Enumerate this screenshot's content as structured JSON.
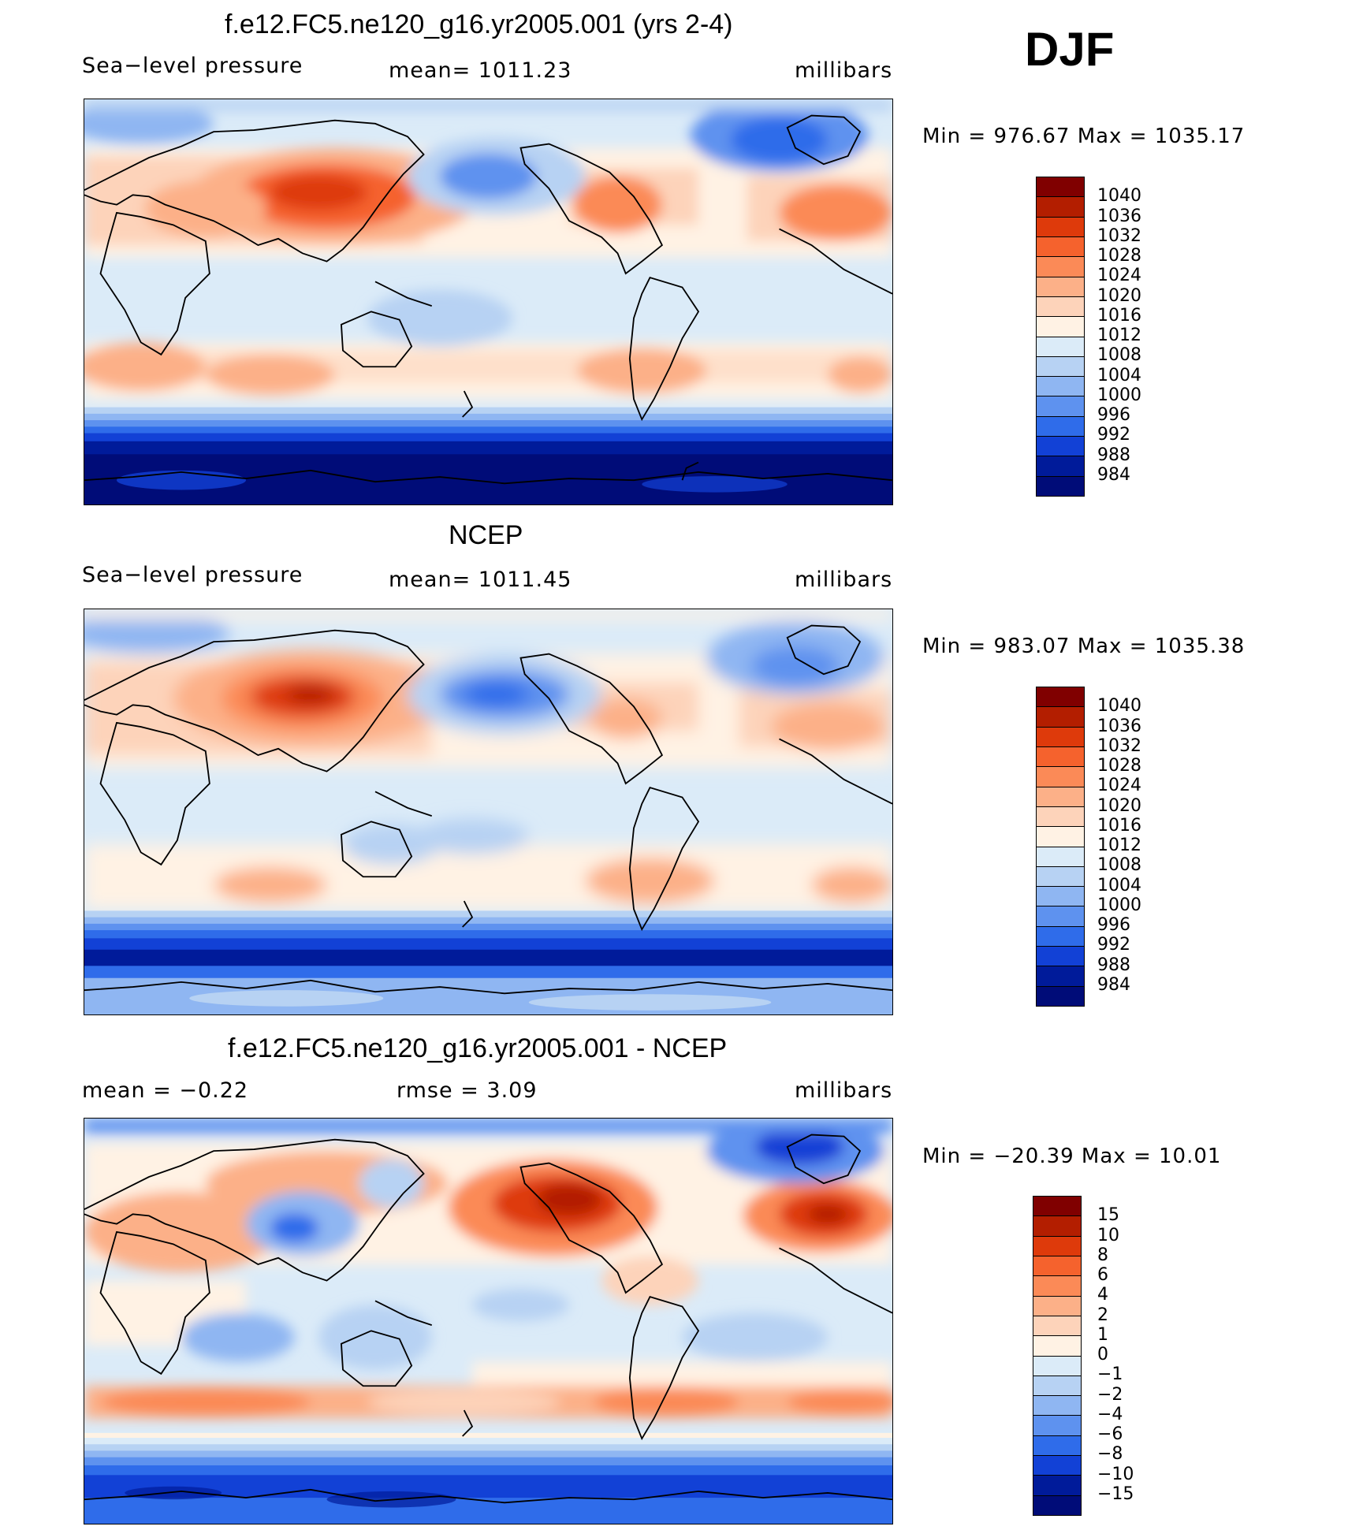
{
  "season": "DJF",
  "panels": [
    {
      "id": "model",
      "title": "f.e12.FC5.ne120_g16.yr2005.001 (yrs 2-4)",
      "left_label": "Sea−level pressure",
      "center_label": "mean=  1011.23",
      "units": "millibars",
      "minmax": "Min  =  976.67  Max  =  1035.17",
      "colorbar": {
        "levels": [
          "1040",
          "1036",
          "1032",
          "1028",
          "1024",
          "1020",
          "1016",
          "1012",
          "1008",
          "1004",
          "1000",
          "996",
          "992",
          "988",
          "984"
        ],
        "colors": [
          "#800000",
          "#b31e00",
          "#de3a0b",
          "#f5622d",
          "#fb8a57",
          "#fcb088",
          "#fdd3ba",
          "#fff2e4",
          "#dbebf8",
          "#b7d2f3",
          "#8fb6f2",
          "#5e92ef",
          "#2f6cea",
          "#1241d6",
          "#001b9a",
          "#000c78"
        ]
      }
    },
    {
      "id": "obs",
      "title": "NCEP",
      "left_label": "Sea−level pressure",
      "center_label": "mean=  1011.45",
      "units": "millibars",
      "minmax": "Min  =  983.07  Max  =  1035.38",
      "colorbar": {
        "levels": [
          "1040",
          "1036",
          "1032",
          "1028",
          "1024",
          "1020",
          "1016",
          "1012",
          "1008",
          "1004",
          "1000",
          "996",
          "992",
          "988",
          "984"
        ],
        "colors": [
          "#800000",
          "#b31e00",
          "#de3a0b",
          "#f5622d",
          "#fb8a57",
          "#fcb088",
          "#fdd3ba",
          "#fff2e4",
          "#dbebf8",
          "#b7d2f3",
          "#8fb6f2",
          "#5e92ef",
          "#2f6cea",
          "#1241d6",
          "#001b9a",
          "#000c78"
        ]
      }
    },
    {
      "id": "diff",
      "title": "f.e12.FC5.ne120_g16.yr2005.001 - NCEP",
      "left_label": "mean  =    −0.22",
      "center_label": "rmse  =     3.09",
      "units": "millibars",
      "minmax": "Min  =  −20.39  Max  =    10.01",
      "colorbar": {
        "levels": [
          "15",
          "10",
          "8",
          "6",
          "4",
          "2",
          "1",
          "0",
          "−1",
          "−2",
          "−4",
          "−6",
          "−8",
          "−10",
          "−15"
        ],
        "colors": [
          "#800000",
          "#b31e00",
          "#de3a0b",
          "#f5622d",
          "#fb8a57",
          "#fcb088",
          "#fdd3ba",
          "#fff2e4",
          "#dbebf8",
          "#b7d2f3",
          "#8fb6f2",
          "#5e92ef",
          "#2f6cea",
          "#1241d6",
          "#001b9a",
          "#000c78"
        ]
      }
    }
  ]
}
